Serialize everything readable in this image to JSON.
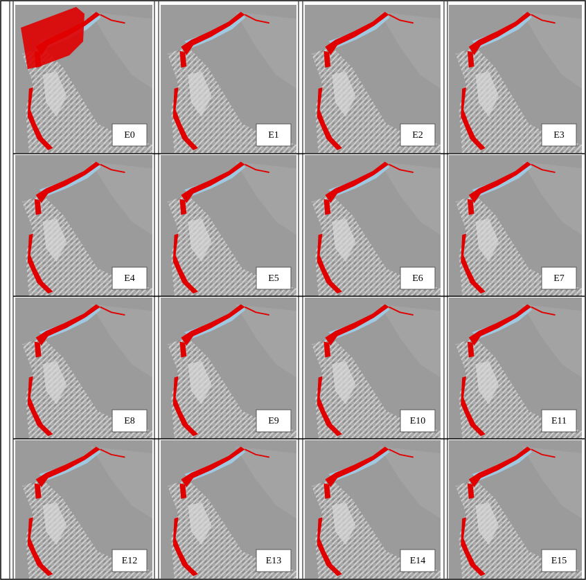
{
  "panels": [
    {
      "label": "E0"
    },
    {
      "label": "E1"
    },
    {
      "label": "E2"
    },
    {
      "label": "E3"
    },
    {
      "label": "E4"
    },
    {
      "label": "E5"
    },
    {
      "label": "E6"
    },
    {
      "label": "E7"
    },
    {
      "label": "E8"
    },
    {
      "label": "E9"
    },
    {
      "label": "E10"
    },
    {
      "label": "E11"
    },
    {
      "label": "E12"
    },
    {
      "label": "E13"
    },
    {
      "label": "E14"
    },
    {
      "label": "E15"
    }
  ]
}
